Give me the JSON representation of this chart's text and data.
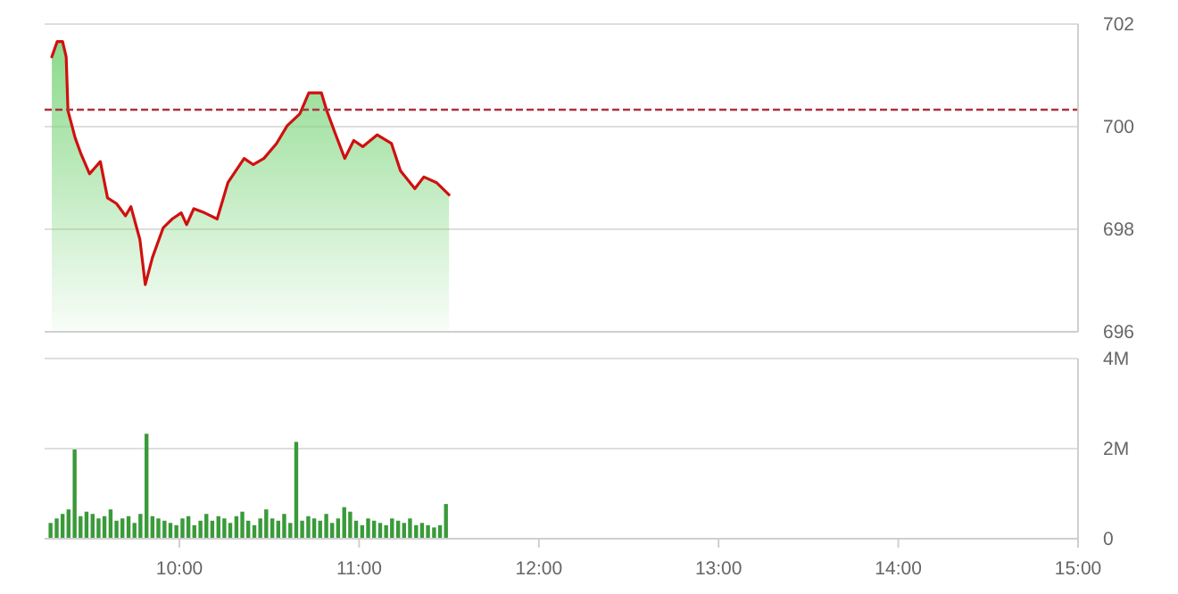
{
  "chart_data": [
    {
      "type": "area",
      "xlim": [
        9.25,
        15
      ],
      "ylim": [
        696,
        702
      ],
      "yticks": [
        696,
        698,
        700,
        702
      ],
      "grid": "y",
      "tick_labels": "y",
      "x": [
        9.29,
        9.32,
        9.35,
        9.37,
        9.38,
        9.42,
        9.45,
        9.5,
        9.53,
        9.56,
        9.6,
        9.65,
        9.7,
        9.73,
        9.78,
        9.81,
        9.85,
        9.91,
        9.96,
        10.01,
        10.04,
        10.08,
        10.14,
        10.21,
        10.27,
        10.36,
        10.41,
        10.47,
        10.54,
        10.6,
        10.67,
        10.72,
        10.79,
        10.82,
        10.87,
        10.92,
        10.97,
        11.02,
        11.1,
        11.18,
        11.23,
        11.31,
        11.36,
        11.43,
        11.5
      ],
      "series": [
        {
          "color": "#7ed67e",
          "values": [
            701.36,
            701.66,
            701.66,
            701.36,
            700.31,
            699.78,
            699.49,
            699.08,
            699.2,
            699.32,
            698.61,
            698.5,
            698.26,
            698.44,
            697.8,
            696.92,
            697.45,
            698.03,
            698.2,
            698.32,
            698.09,
            698.4,
            698.32,
            698.2,
            698.91,
            699.38,
            699.26,
            699.38,
            699.67,
            700.02,
            700.25,
            700.66,
            700.66,
            700.31,
            699.84,
            699.38,
            699.73,
            699.61,
            699.84,
            699.67,
            699.14,
            698.79,
            699.02,
            698.91,
            698.67
          ]
        },
        {
          "type": "line",
          "color": "#d01010",
          "values": [
            701.36,
            701.66,
            701.66,
            701.36,
            700.31,
            699.78,
            699.49,
            699.08,
            699.2,
            699.32,
            698.61,
            698.5,
            698.26,
            698.44,
            697.8,
            696.92,
            697.45,
            698.03,
            698.2,
            698.32,
            698.09,
            698.4,
            698.32,
            698.2,
            698.91,
            699.38,
            699.26,
            699.38,
            699.67,
            700.02,
            700.25,
            700.66,
            700.66,
            700.31,
            699.84,
            699.38,
            699.73,
            699.61,
            699.84,
            699.67,
            699.14,
            698.79,
            699.02,
            698.91,
            698.67
          ]
        }
      ],
      "ref_lines": [
        {
          "axis": "y",
          "value": 700.33,
          "color": "#b03040",
          "line_style": "dashed"
        }
      ]
    },
    {
      "type": "bar",
      "xlim": [
        9.25,
        15
      ],
      "xticks": [
        {
          "value": 10,
          "label": "10:00"
        },
        {
          "value": 11,
          "label": "11:00"
        },
        {
          "value": 12,
          "label": "12:00"
        },
        {
          "value": 13,
          "label": "13:00"
        },
        {
          "value": 14,
          "label": "14:00"
        },
        {
          "value": 15,
          "label": "15:00"
        }
      ],
      "ylim": [
        0,
        4
      ],
      "yticks": [
        0,
        {
          "value": 2,
          "label": "2M"
        },
        {
          "value": 4,
          "label": "4M"
        }
      ],
      "grid": "y",
      "x": [
        9.283,
        9.317,
        9.35,
        9.383,
        9.417,
        9.45,
        9.483,
        9.517,
        9.55,
        9.583,
        9.617,
        9.65,
        9.683,
        9.717,
        9.75,
        9.783,
        9.817,
        9.85,
        9.883,
        9.917,
        9.95,
        9.983,
        10.017,
        10.05,
        10.083,
        10.117,
        10.15,
        10.183,
        10.217,
        10.25,
        10.283,
        10.317,
        10.35,
        10.383,
        10.417,
        10.45,
        10.483,
        10.517,
        10.55,
        10.583,
        10.617,
        10.65,
        10.683,
        10.717,
        10.75,
        10.783,
        10.817,
        10.85,
        10.883,
        10.917,
        10.95,
        10.983,
        11.017,
        11.05,
        11.083,
        11.117,
        11.15,
        11.183,
        11.217,
        11.25,
        11.283,
        11.317,
        11.35,
        11.383,
        11.417,
        11.45,
        11.483
      ],
      "color": "#3a9a3a",
      "values": [
        0.35,
        0.45,
        0.55,
        0.65,
        1.98,
        0.5,
        0.6,
        0.55,
        0.45,
        0.5,
        0.65,
        0.4,
        0.45,
        0.5,
        0.35,
        0.55,
        2.33,
        0.5,
        0.45,
        0.4,
        0.35,
        0.3,
        0.45,
        0.5,
        0.3,
        0.4,
        0.55,
        0.4,
        0.5,
        0.45,
        0.35,
        0.5,
        0.6,
        0.4,
        0.3,
        0.45,
        0.65,
        0.45,
        0.4,
        0.55,
        0.35,
        2.15,
        0.4,
        0.5,
        0.45,
        0.4,
        0.55,
        0.35,
        0.45,
        0.7,
        0.6,
        0.4,
        0.3,
        0.45,
        0.4,
        0.35,
        0.3,
        0.45,
        0.4,
        0.35,
        0.45,
        0.3,
        0.35,
        0.3,
        0.25,
        0.3,
        0.77
      ]
    }
  ]
}
